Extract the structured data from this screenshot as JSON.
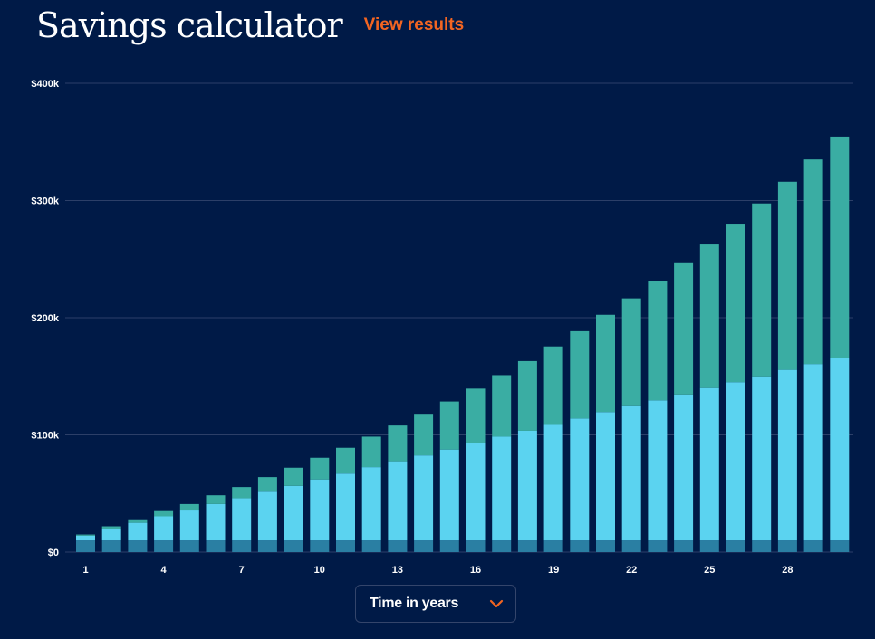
{
  "header": {
    "title": "Savings calculator",
    "results_link": "View results"
  },
  "time_selector": {
    "label": "Time in years",
    "icon": "chevron-down-icon"
  },
  "colors": {
    "background": "#001a47",
    "initial_deposit": "#2a7fa3",
    "contributions": "#5bd3f0",
    "interest": "#3aada3",
    "accent": "#f26522",
    "gridline": "#2c3f68"
  },
  "chart_data": {
    "type": "bar",
    "stacked": true,
    "x": [
      1,
      2,
      3,
      4,
      5,
      6,
      7,
      8,
      9,
      10,
      11,
      12,
      13,
      14,
      15,
      16,
      17,
      18,
      19,
      20,
      21,
      22,
      23,
      24,
      25,
      26,
      27,
      28,
      29,
      30
    ],
    "x_tick_labels": [
      "1",
      "4",
      "7",
      "10",
      "13",
      "16",
      "19",
      "22",
      "25",
      "28"
    ],
    "y_tick_labels": [
      "$0",
      "$100k",
      "$200k",
      "$300k",
      "$400k"
    ],
    "y_ticks": [
      0,
      100000,
      200000,
      300000,
      400000
    ],
    "ylim": [
      0,
      400000
    ],
    "grid": true,
    "series": [
      {
        "color": "#2a7fa3",
        "values": [
          10000,
          10000,
          10000,
          10000,
          10000,
          10000,
          10000,
          10000,
          10000,
          10000,
          10000,
          10000,
          10000,
          10000,
          10000,
          10000,
          10000,
          10000,
          10000,
          10000,
          10000,
          10000,
          10000,
          10000,
          10000,
          10000,
          10000,
          10000,
          10000,
          10000
        ]
      },
      {
        "color": "#5bd3f0",
        "values": [
          4000,
          9500,
          15000,
          20500,
          25500,
          31000,
          36000,
          41500,
          46500,
          52000,
          57000,
          62500,
          67500,
          72500,
          77500,
          83000,
          88500,
          93500,
          98500,
          104000,
          109500,
          114500,
          119500,
          124500,
          130000,
          135000,
          140000,
          145500,
          150500,
          155500
        ]
      },
      {
        "color": "#3aada3",
        "values": [
          1000,
          2500,
          3000,
          4500,
          5500,
          7500,
          9500,
          12500,
          15500,
          18500,
          22000,
          26000,
          30500,
          35500,
          41000,
          46500,
          52500,
          59500,
          67000,
          74500,
          83000,
          92000,
          101500,
          112000,
          122500,
          134500,
          147500,
          160500,
          174500,
          189000
        ]
      }
    ]
  }
}
